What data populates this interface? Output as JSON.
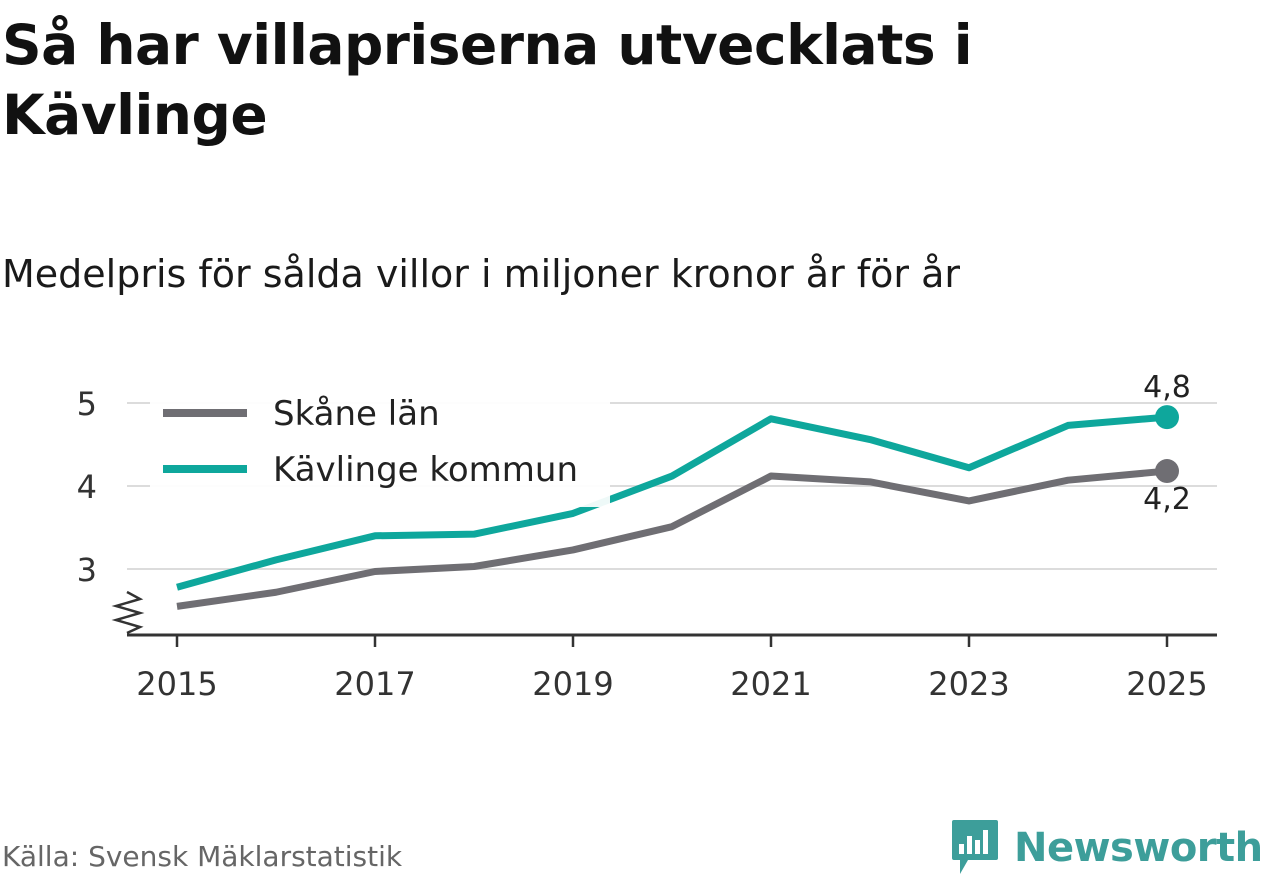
{
  "title": "Så har villapriserna utvecklats i Kävlinge",
  "subtitle": "Medelpris för sålda villor i miljoner kronor år för år",
  "source": "Källa: Svensk Mäklarstatistik",
  "logo": {
    "name": "Newsworthy",
    "icon": "bar-chart-speech-bubble-icon",
    "color": "#3d9e9a"
  },
  "chart_data": {
    "type": "line",
    "title": "Så har villapriserna utvecklats i Kävlinge",
    "xlabel": "",
    "ylabel": "Medelpris (miljoner kronor)",
    "x": [
      2015,
      2016,
      2017,
      2018,
      2019,
      2020,
      2021,
      2022,
      2023,
      2024,
      2025
    ],
    "xticks": [
      "2015",
      "2017",
      "2019",
      "2021",
      "2023",
      "2025"
    ],
    "yticks": [
      "3",
      "4",
      "5"
    ],
    "ylim": [
      2.2,
      5.2
    ],
    "xlim": [
      2014.5,
      2025.5
    ],
    "y_axis_break": true,
    "grid": true,
    "legend": "top-left",
    "series": [
      {
        "name": "Skåne län",
        "color": "#6f6e73",
        "values": [
          2.55,
          2.72,
          2.97,
          3.03,
          3.23,
          3.51,
          4.12,
          4.05,
          3.82,
          4.07,
          4.18
        ],
        "end_label": "4,2"
      },
      {
        "name": "Kävlinge kommun",
        "color": "#0ea79c",
        "values": [
          2.78,
          3.11,
          3.4,
          3.42,
          3.67,
          4.12,
          4.81,
          4.56,
          4.22,
          4.73,
          4.83
        ],
        "end_label": "4,8"
      }
    ]
  }
}
